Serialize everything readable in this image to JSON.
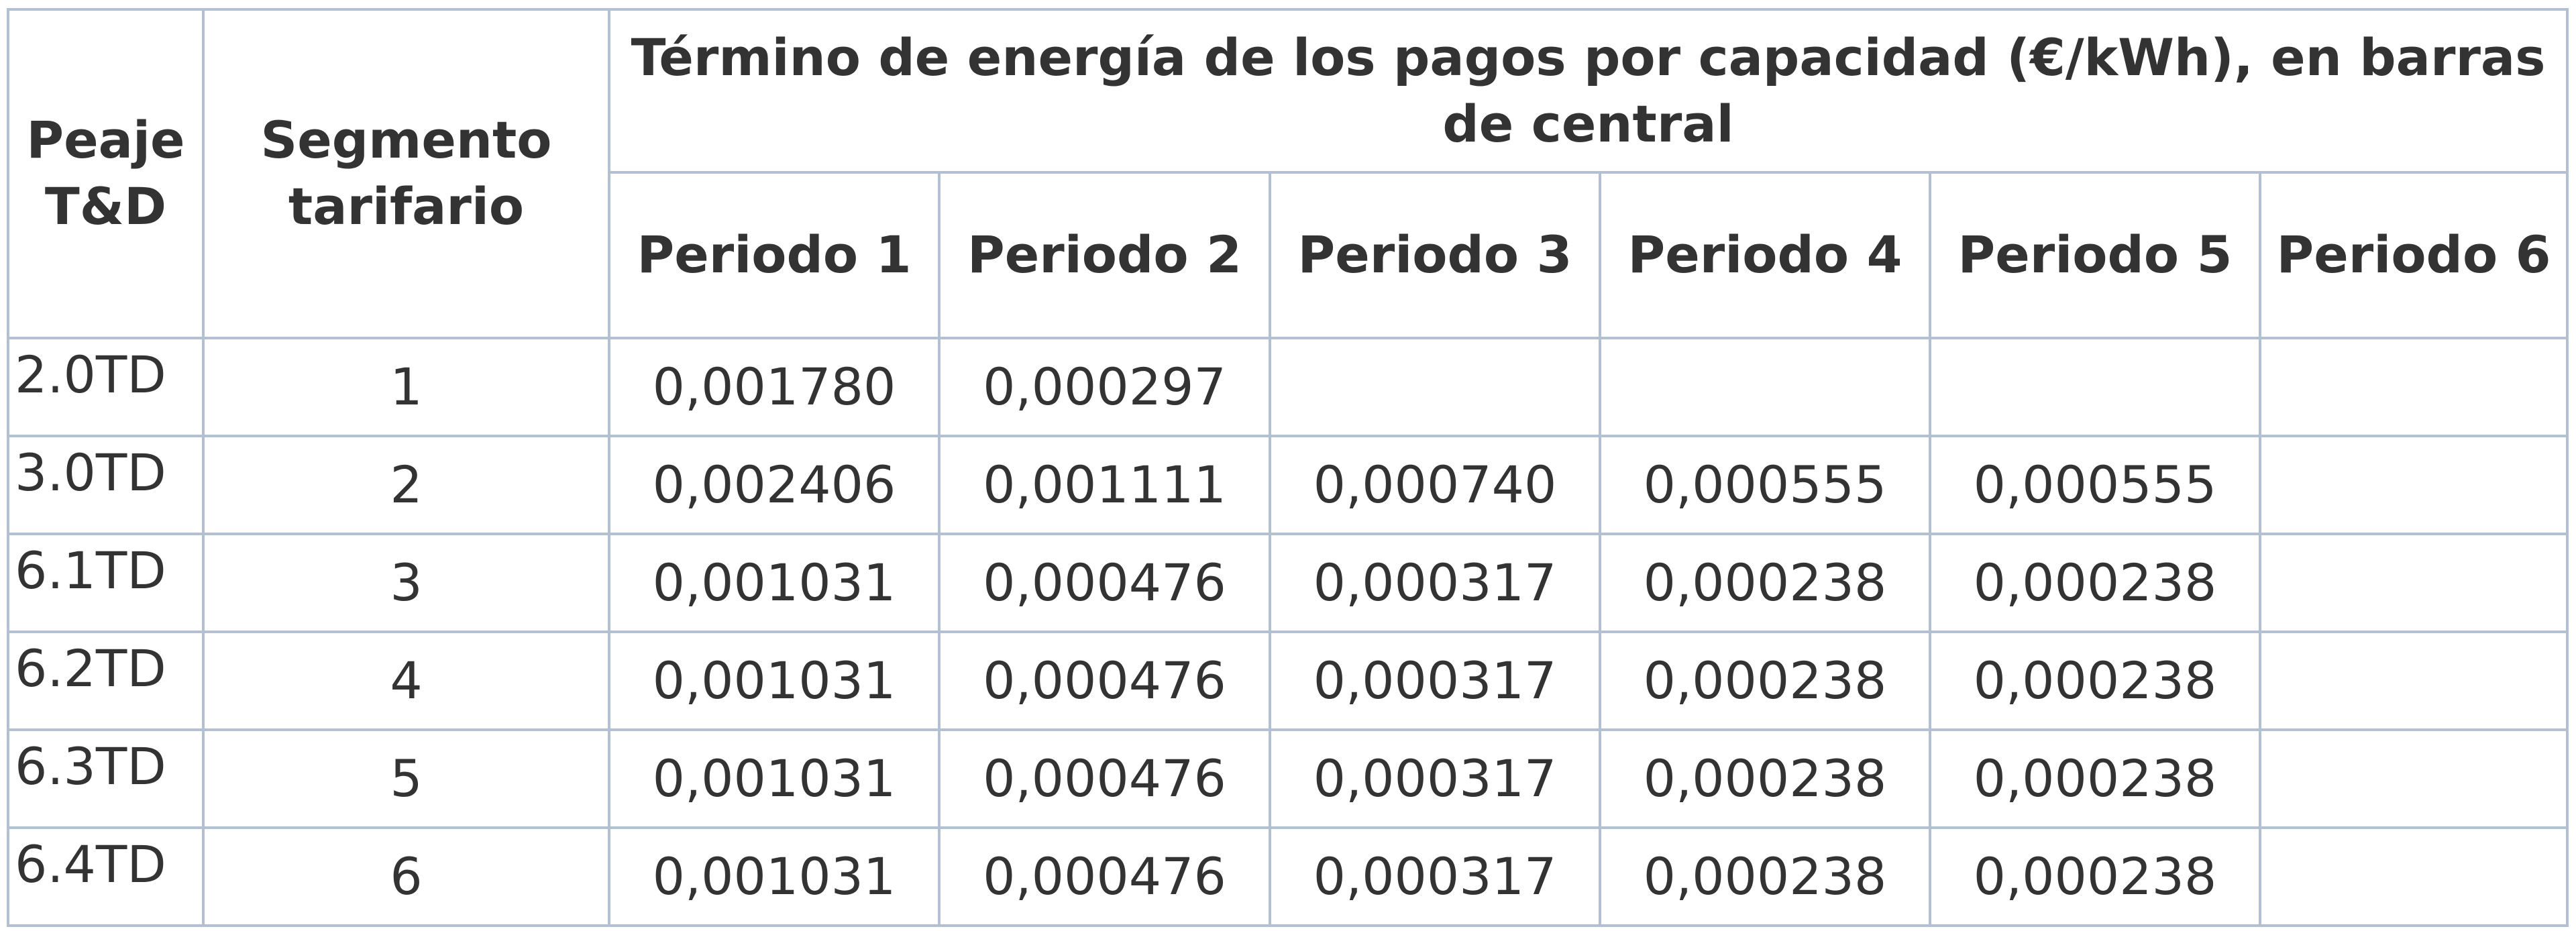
{
  "header": {
    "peaje": "Peaje T&D",
    "segmento": "Segmento tarifario",
    "group": "Término de energía de los pagos por capacidad (€/kWh), en barras de central",
    "periods": [
      "Periodo 1",
      "Periodo 2",
      "Periodo 3",
      "Periodo 4",
      "Periodo 5",
      "Periodo 6"
    ]
  },
  "rows": [
    {
      "peaje": "2.0TD",
      "segmento": 1,
      "values": [
        "0,001780",
        "0,000297"
      ]
    },
    {
      "peaje": "3.0TD",
      "segmento": 2,
      "values": [
        "0,002406",
        "0,001111",
        "0,000740",
        "0,000555",
        "0,000555"
      ]
    },
    {
      "peaje": "6.1TD",
      "segmento": 3,
      "values": [
        "0,001031",
        "0,000476",
        "0,000317",
        "0,000238",
        "0,000238"
      ]
    },
    {
      "peaje": "6.2TD",
      "segmento": 4,
      "values": [
        "0,001031",
        "0,000476",
        "0,000317",
        "0,000238",
        "0,000238"
      ]
    },
    {
      "peaje": "6.3TD",
      "segmento": 5,
      "values": [
        "0,001031",
        "0,000476",
        "0,000317",
        "0,000238",
        "0,000238"
      ]
    },
    {
      "peaje": "6.4TD",
      "segmento": 6,
      "values": [
        "0,001031",
        "0,000476",
        "0,000317",
        "0,000238",
        "0,000238"
      ]
    }
  ]
}
